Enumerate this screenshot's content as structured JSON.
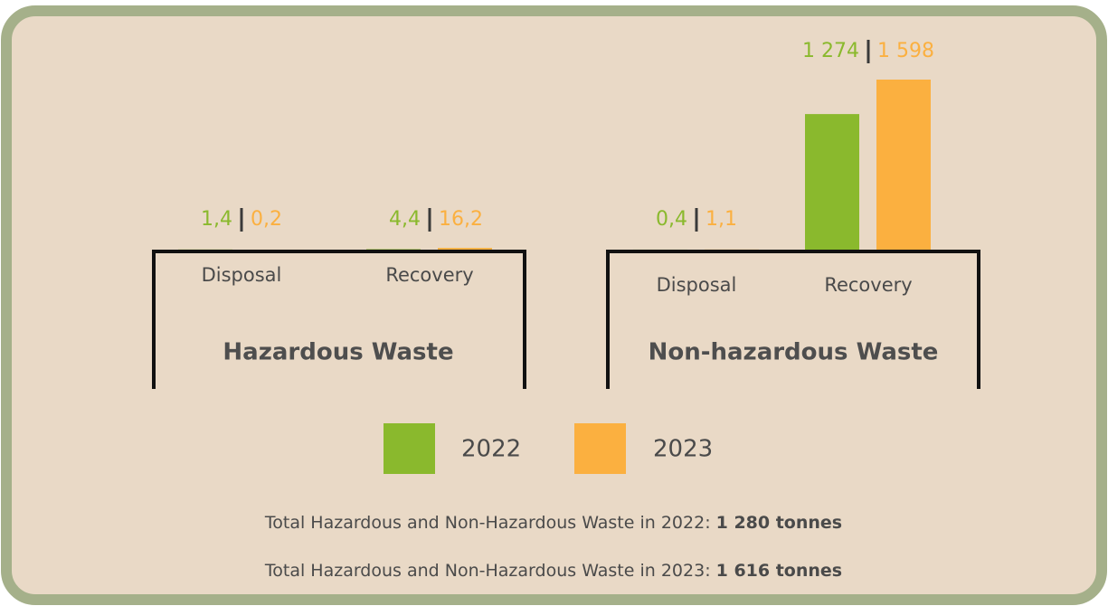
{
  "chart_data": {
    "type": "grouped-bar",
    "groups": [
      {
        "name": "Hazardous Waste",
        "categories": [
          "Disposal",
          "Recovery"
        ]
      },
      {
        "name": "Non-hazardous Waste",
        "categories": [
          "Disposal",
          "Recovery"
        ]
      }
    ],
    "series": [
      {
        "name": "2022",
        "color": "#8ab92d",
        "values": [
          1.4,
          4.4,
          0.4,
          1274
        ],
        "value_labels": [
          "1,4",
          "4,4",
          "0,4",
          "1 274"
        ]
      },
      {
        "name": "2023",
        "color": "#fbb040",
        "values": [
          0.2,
          16.2,
          1.1,
          1598
        ],
        "value_labels": [
          "0,2",
          "16,2",
          "1,1",
          "1 598"
        ]
      }
    ],
    "notes": [
      {
        "text": "Total Hazardous and Non-Hazardous Waste in 2022:",
        "bold": "1 280 tonnes"
      },
      {
        "text": "Total Hazardous and Non-Hazardous Waste in 2023:",
        "bold": "1 616 tonnes"
      }
    ]
  }
}
